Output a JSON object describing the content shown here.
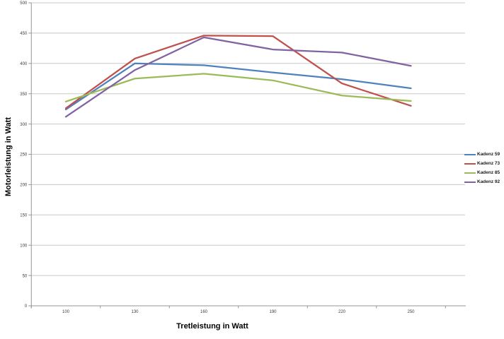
{
  "chart_data": {
    "type": "line",
    "title": "",
    "categories": [
      "100",
      "130",
      "160",
      "190",
      "220",
      "250"
    ],
    "series": [
      {
        "name": "Kadenz 59",
        "color": "#4F81BD",
        "values": [
          324,
          400,
          397,
          385,
          374,
          359
        ]
      },
      {
        "name": "Kadenz 73",
        "color": "#C0504D",
        "values": [
          326,
          408,
          446,
          445,
          367,
          330
        ]
      },
      {
        "name": "Kadenz 85",
        "color": "#9BBB59",
        "values": [
          337,
          375,
          383,
          372,
          347,
          338
        ]
      },
      {
        "name": "Kadenz 92",
        "color": "#8064A2",
        "values": [
          312,
          389,
          443,
          423,
          418,
          396
        ]
      }
    ],
    "xlabel": "Tretleistung in Watt",
    "ylabel": "Motorleistung in Watt",
    "ylim": [
      0,
      500
    ],
    "yticks": [
      0,
      50,
      100,
      150,
      200,
      250,
      300,
      350,
      400,
      450,
      500
    ],
    "grid": "horizontal",
    "legend_position": "right"
  },
  "colors": {
    "gridline": "#c9c9c9",
    "axis_line": "#969696",
    "tick_label": "#3c3c3c",
    "background": "#ffffff"
  }
}
